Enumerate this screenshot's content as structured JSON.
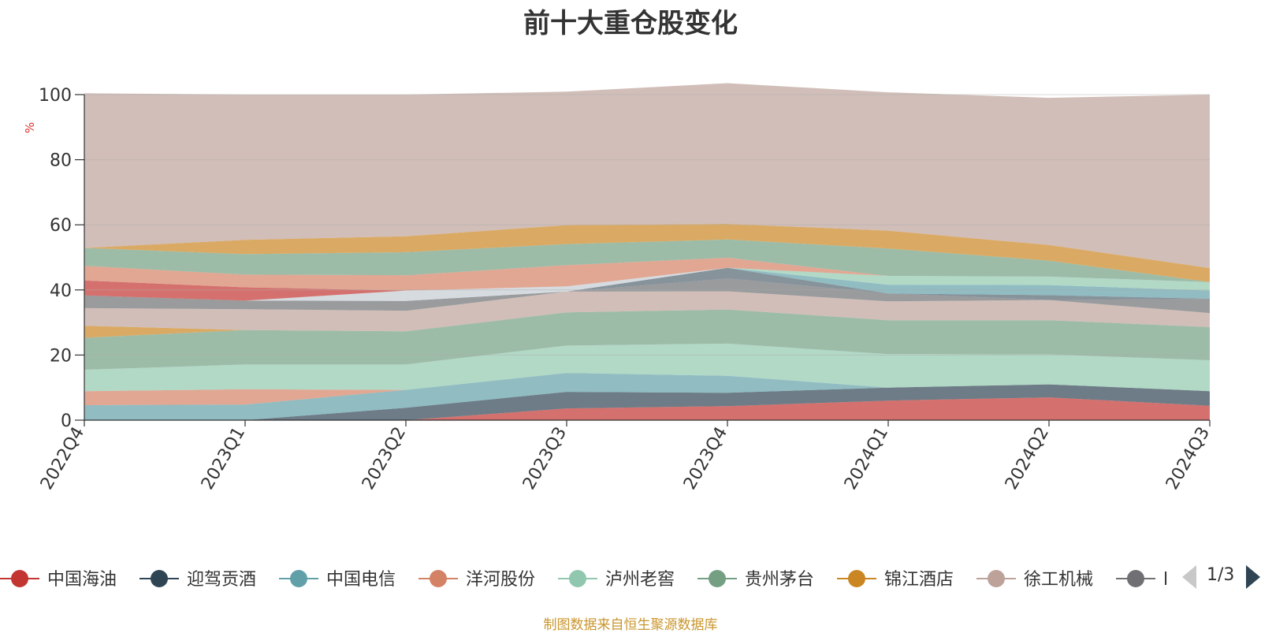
{
  "chart_data": {
    "type": "area",
    "stacked": true,
    "title": "前十大重仓股变化",
    "ylabel": "%",
    "xlabel": "",
    "ylim": [
      0,
      100
    ],
    "yticks": [
      "0",
      "20",
      "40",
      "60",
      "80",
      "100"
    ],
    "categories": [
      "2022Q4",
      "2023Q1",
      "2023Q2",
      "2023Q3",
      "2023Q4",
      "2024Q1",
      "2024Q2",
      "2024Q3"
    ],
    "series": [
      {
        "name": "中国海油",
        "color": "#c23531",
        "values": [
          0,
          0,
          0,
          3.6,
          4.3,
          6.0,
          7.0,
          4.4
        ]
      },
      {
        "name": "迎驾贡酒",
        "color": "#2f4554",
        "values": [
          0,
          0,
          3.8,
          5.1,
          4.1,
          4.0,
          4.0,
          4.5
        ]
      },
      {
        "name": "中国电信",
        "color": "#61a0a8",
        "values": [
          4.6,
          4.8,
          5.5,
          5.8,
          5.2,
          0,
          0,
          0
        ]
      },
      {
        "name": "洋河股份",
        "color": "#d48265",
        "values": [
          4.3,
          4.7,
          0,
          0,
          0,
          0,
          0,
          0
        ]
      },
      {
        "name": "泸州老窖",
        "color": "#91c7ae",
        "values": [
          6.6,
          7.6,
          7.8,
          8.4,
          9.9,
          10.3,
          9.2,
          9.5
        ]
      },
      {
        "name": "贵州茅台",
        "color": "#749f83",
        "values": [
          9.8,
          10.6,
          10.2,
          10.2,
          10.5,
          10.4,
          10.5,
          10.2
        ]
      },
      {
        "name": "锦江酒店",
        "color": "#ca8622",
        "values": [
          3.7,
          0,
          0,
          0,
          0,
          0,
          0,
          0
        ]
      },
      {
        "name": "徐工机械",
        "color": "#bda29a",
        "values": [
          5.4,
          6.4,
          6.3,
          6.4,
          5.6,
          5.8,
          6.2,
          4.3
        ]
      },
      {
        "name": "",
        "color": "#6e7074",
        "values": [
          3.9,
          2.6,
          3.0,
          0,
          3.9,
          2.4,
          0,
          4.4
        ]
      },
      {
        "name": "",
        "color": "#546570",
        "values": [
          0,
          0,
          0,
          0,
          3.3,
          0,
          1.5,
          0
        ]
      },
      {
        "name": "",
        "color": "#c4ccd3",
        "values": [
          0,
          0,
          3.2,
          1.6,
          0,
          0,
          0,
          0
        ]
      },
      {
        "name": "",
        "color": "#61a0a8",
        "values": [
          0,
          0,
          0,
          0,
          0,
          2.7,
          3.1,
          2.5
        ]
      },
      {
        "name": "",
        "color": "#91c7ae",
        "values": [
          0,
          0,
          0,
          0,
          0,
          2.7,
          2.6,
          2.6
        ]
      },
      {
        "name": "",
        "color": "#c23531",
        "values": [
          4.6,
          4.1,
          0,
          0,
          0,
          0,
          0,
          0
        ]
      },
      {
        "name": "",
        "color": "#d48265",
        "values": [
          4.5,
          3.9,
          4.7,
          6.5,
          3.1,
          0,
          0,
          0
        ]
      },
      {
        "name": "",
        "color": "#749f83",
        "values": [
          5.5,
          6.3,
          7.1,
          6.5,
          5.6,
          8.4,
          4.9,
          0
        ]
      },
      {
        "name": "",
        "color": "#ca8622",
        "values": [
          0,
          4.4,
          4.9,
          5.8,
          4.8,
          5.5,
          4.8,
          4.3
        ]
      },
      {
        "name": "",
        "color": "#bda29a",
        "values": [
          47.5,
          44.6,
          43.5,
          41.0,
          43.2,
          42.5,
          45.2,
          53.3
        ]
      }
    ],
    "legend": {
      "position": "bottom",
      "items": [
        {
          "label": "中国海油",
          "color": "#c23531"
        },
        {
          "label": "迎驾贡酒",
          "color": "#2f4554"
        },
        {
          "label": "中国电信",
          "color": "#61a0a8"
        },
        {
          "label": "洋河股份",
          "color": "#d48265"
        },
        {
          "label": "泸州老窖",
          "color": "#91c7ae"
        },
        {
          "label": "贵州茅台",
          "color": "#749f83"
        },
        {
          "label": "锦江酒店",
          "color": "#ca8622"
        },
        {
          "label": "徐工机械",
          "color": "#bda29a"
        },
        {
          "label": "l",
          "color": "#6e7074"
        }
      ],
      "page": "1/3"
    },
    "grid": true,
    "note": "制图数据来自恒生聚源数据库"
  }
}
